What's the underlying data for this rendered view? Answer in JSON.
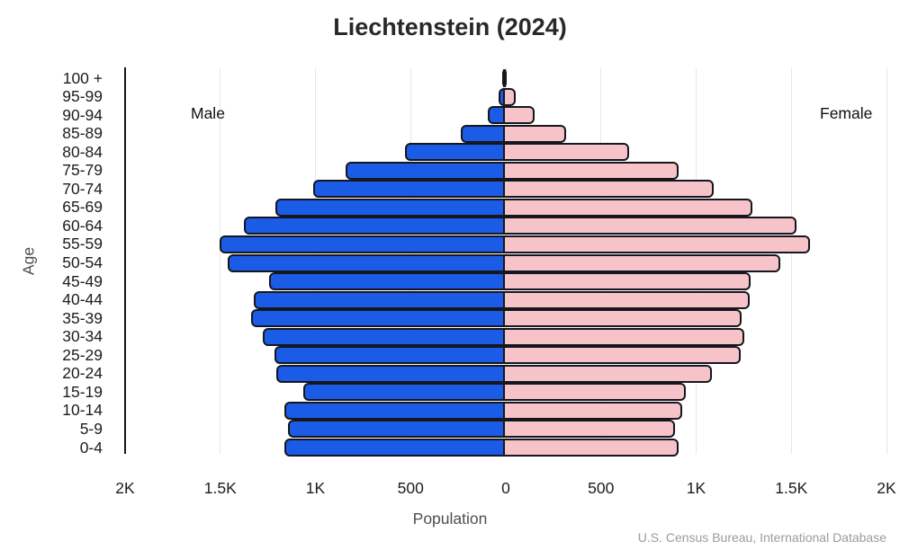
{
  "title": "Liechtenstein (2024)",
  "labels": {
    "male": "Male",
    "female": "Female",
    "age_axis": "Age",
    "population_axis": "Population",
    "source": "U.S. Census Bureau, International Database"
  },
  "colors": {
    "male_bar": "#1A5CE5",
    "female_bar": "#F6C3C8",
    "bar_border": "#16161E",
    "gridline": "#E7E7E7",
    "axis_line": "#161616",
    "title_text": "#282828",
    "tick_text": "#1C1C1C",
    "muted_text": "#4F4F4F",
    "source_text": "#9B9B9B"
  },
  "chart_data": {
    "type": "bar",
    "subtype": "population-pyramid",
    "orientation": "horizontal",
    "title": "Liechtenstein (2024)",
    "xlabel": "Population",
    "ylabel": "Age",
    "grid": true,
    "xlim": [
      -2000,
      2000
    ],
    "x_tick_labels": [
      "2K",
      "1.5K",
      "1K",
      "500",
      "0",
      "500",
      "1K",
      "1.5K",
      "2K"
    ],
    "x_tick_values": [
      -2000,
      -1500,
      -1000,
      -500,
      0,
      500,
      1000,
      1500,
      2000
    ],
    "categories_top_to_bottom": [
      "100 +",
      "95-99",
      "90-94",
      "85-89",
      "80-84",
      "75-79",
      "70-74",
      "65-69",
      "60-64",
      "55-59",
      "50-54",
      "45-49",
      "40-44",
      "35-39",
      "30-34",
      "25-29",
      "20-24",
      "15-19",
      "10-14",
      "5-9",
      "0-4"
    ],
    "series": [
      {
        "name": "Male",
        "side": "left",
        "values": [
          5,
          35,
          90,
          230,
          525,
          835,
          1005,
          1205,
          1370,
          1500,
          1455,
          1240,
          1320,
          1335,
          1270,
          1210,
          1200,
          1060,
          1160,
          1140,
          1160
        ]
      },
      {
        "name": "Female",
        "side": "right",
        "values": [
          10,
          65,
          165,
          330,
          660,
          920,
          1105,
          1310,
          1540,
          1610,
          1455,
          1300,
          1295,
          1255,
          1265,
          1250,
          1095,
          960,
          940,
          905,
          920
        ]
      }
    ]
  }
}
